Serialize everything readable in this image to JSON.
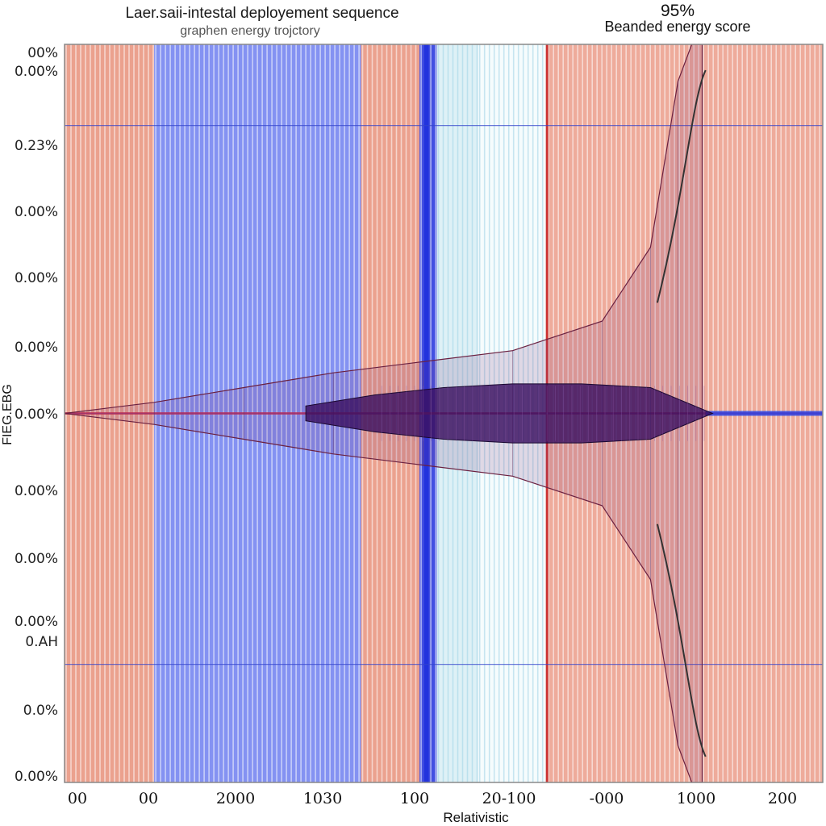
{
  "header": {
    "title": "Laer.saii-intestal deployement sequence",
    "subtitle": "graphen energy trojctory",
    "score_percent": "95%",
    "score_label": "Beanded energy score"
  },
  "chart_data": {
    "type": "line",
    "title": "Laer.saii-intestal deployement sequence",
    "subtitle": "graphen energy trojctory",
    "xlabel": "Relativistic",
    "ylabel": "FIEG.EBG",
    "x_tick_labels": [
      "00",
      "00",
      "2000",
      "1030",
      "100",
      "20-100",
      "-000",
      "1000",
      "200"
    ],
    "y_tick_labels": [
      "00%",
      "0.00%",
      "0.23%",
      "0.00%",
      "0.00%",
      "0.00%",
      "0.00%",
      "0.00%",
      "0.00%",
      "0.00%",
      "0.AH",
      "0.0%",
      "0.00%"
    ],
    "bands": [
      {
        "from": 0,
        "to": 1.3,
        "color": "#e8907a"
      },
      {
        "from": 1.3,
        "to": 4.3,
        "color": "#6f7ff0"
      },
      {
        "from": 4.3,
        "to": 5.15,
        "color": "#e8907a"
      },
      {
        "from": 5.15,
        "to": 5.4,
        "color": "#2233dd"
      },
      {
        "from": 5.4,
        "to": 6.0,
        "color": "#d8eef5"
      },
      {
        "from": 6.0,
        "to": 7.0,
        "color": "#f4fbfd"
      },
      {
        "from": 7.0,
        "to": 11.0,
        "color": "#eb9c8a"
      }
    ],
    "envelope": {
      "x": [
        0,
        1.3,
        2.6,
        3.9,
        5.2,
        6.5,
        7.8,
        8.5,
        8.9,
        9.1,
        9.25
      ],
      "upper": [
        0.0,
        0.03,
        0.07,
        0.11,
        0.14,
        0.17,
        0.25,
        0.45,
        0.9,
        1.0,
        1.0
      ],
      "lower": [
        0.0,
        -0.03,
        -0.07,
        -0.11,
        -0.14,
        -0.17,
        -0.25,
        -0.45,
        -0.9,
        -1.0,
        -1.0
      ]
    },
    "core": {
      "x": [
        3.5,
        4.5,
        5.5,
        6.5,
        7.5,
        8.5,
        9.4
      ],
      "half_width": [
        0.02,
        0.05,
        0.07,
        0.08,
        0.08,
        0.07,
        0.0
      ]
    },
    "xlim": [
      0,
      11
    ],
    "ylim": [
      -1,
      1
    ],
    "grid": true,
    "colors": {
      "accent_red": "#cc3333",
      "accent_blue": "#2233dd",
      "core": "#3a1060"
    }
  }
}
